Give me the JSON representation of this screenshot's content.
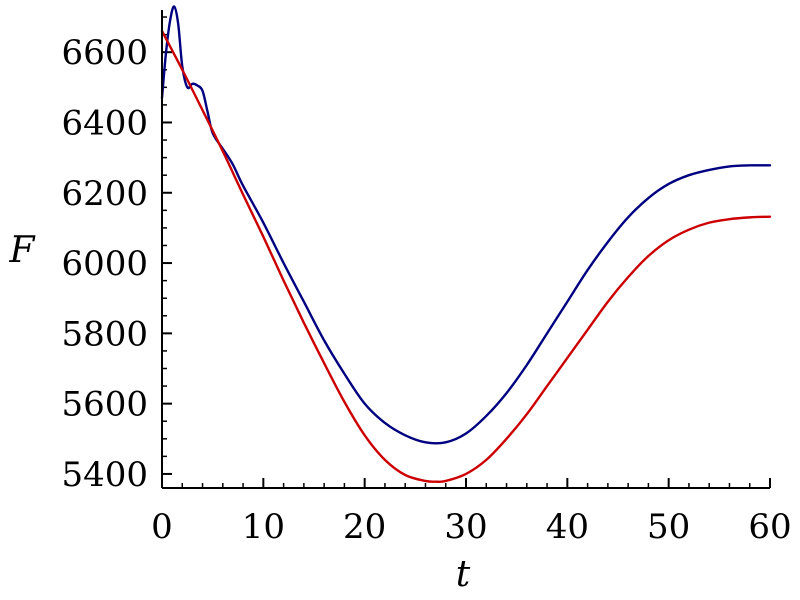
{
  "chart_data": {
    "type": "line",
    "title": "",
    "xlabel": "t",
    "ylabel": "F",
    "xlim": [
      0,
      60
    ],
    "ylim": [
      5360,
      6720
    ],
    "x_ticks": [
      0,
      10,
      20,
      30,
      40,
      50,
      60
    ],
    "x_tick_labels": [
      "0",
      "10",
      "20",
      "30",
      "40",
      "50",
      "60"
    ],
    "y_ticks": [
      5400,
      5600,
      5800,
      6000,
      6200,
      6400,
      6600
    ],
    "y_tick_labels": [
      "5400",
      "5600",
      "5800",
      "6000",
      "6200",
      "6400",
      "6600"
    ],
    "grid": false,
    "legend": "none",
    "series": [
      {
        "color": "#000080",
        "x": [
          0,
          0.4,
          0.8,
          1.2,
          1.6,
          2.0,
          2.5,
          3.0,
          3.5,
          4.0,
          4.5,
          5.0,
          6.0,
          7.0,
          8.0,
          10,
          12,
          14,
          16,
          18,
          20,
          22,
          24,
          26,
          28,
          30,
          32,
          34,
          36,
          38,
          40,
          42,
          44,
          46,
          48,
          50,
          52,
          54,
          56,
          58,
          60
        ],
        "values": [
          6470,
          6600,
          6690,
          6730,
          6680,
          6560,
          6500,
          6510,
          6505,
          6490,
          6430,
          6370,
          6325,
          6280,
          6220,
          6115,
          6000,
          5890,
          5780,
          5685,
          5600,
          5545,
          5510,
          5490,
          5490,
          5515,
          5565,
          5630,
          5710,
          5800,
          5890,
          5980,
          6060,
          6130,
          6185,
          6225,
          6250,
          6265,
          6275,
          6278,
          6278
        ]
      },
      {
        "color": "#cc0000",
        "x": [
          0,
          2,
          4,
          6,
          8,
          10,
          12,
          14,
          16,
          18,
          20,
          22,
          24,
          26,
          27,
          28,
          30,
          32,
          34,
          36,
          38,
          40,
          42,
          44,
          46,
          48,
          50,
          52,
          54,
          56,
          58,
          60
        ],
        "values": [
          6660,
          6550,
          6435,
          6318,
          6195,
          6075,
          5950,
          5830,
          5715,
          5605,
          5510,
          5440,
          5397,
          5380,
          5378,
          5380,
          5400,
          5440,
          5500,
          5570,
          5650,
          5730,
          5810,
          5890,
          5960,
          6020,
          6065,
          6095,
          6115,
          6125,
          6130,
          6132
        ]
      }
    ]
  }
}
